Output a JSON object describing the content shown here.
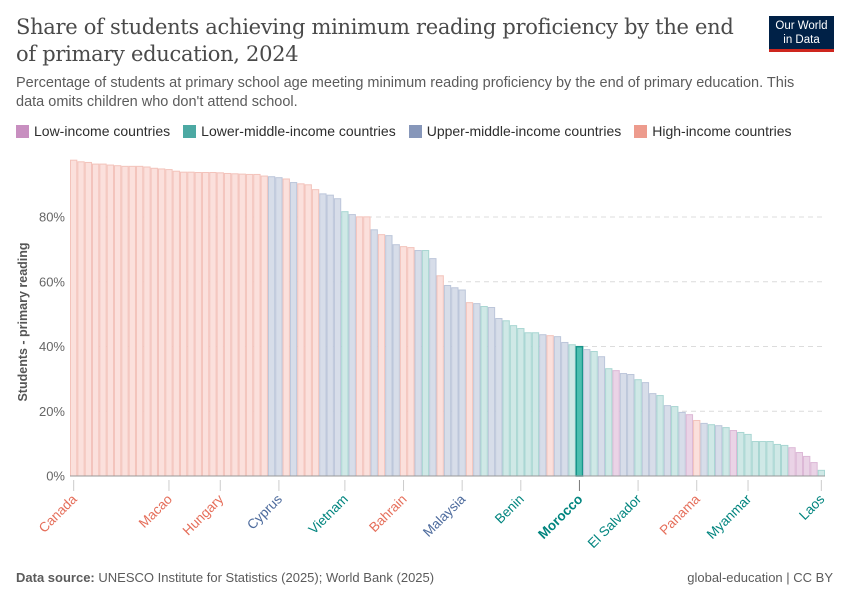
{
  "header": {
    "title": "Share of students achieving minimum reading proficiency by the end of primary education, 2024",
    "subtitle": "Percentage of students at primary school age meeting minimum reading proficiency by the end of primary education. This data omits children who don't attend school.",
    "logo_line1": "Our World",
    "logo_line2": "in Data"
  },
  "legend": [
    {
      "label": "Low-income countries",
      "key": "low",
      "color": "#c88fc0"
    },
    {
      "label": "Lower-middle-income countries",
      "key": "lmid",
      "color": "#4ca9a3"
    },
    {
      "label": "Upper-middle-income countries",
      "key": "umid",
      "color": "#8797ba"
    },
    {
      "label": "High-income countries",
      "key": "high",
      "color": "#ed9b8d"
    }
  ],
  "footer": {
    "source_label": "Data source:",
    "source_text": "UNESCO Institute for Statistics (2025); World Bank (2025)",
    "right_text": "global-education | CC BY"
  },
  "chart_data": {
    "type": "bar",
    "title": "Share of students achieving minimum reading proficiency by the end of primary education, 2024",
    "ylabel": "Students - primary reading",
    "xlabel": "",
    "ylim": [
      0,
      100
    ],
    "yticks": [
      0,
      20,
      40,
      60,
      80
    ],
    "ytick_labels": [
      "0%",
      "20%",
      "40%",
      "60%",
      "80%"
    ],
    "grid": true,
    "highlight": "Morocco",
    "group_colors": {
      "low": {
        "fill": "#ead3e6",
        "stroke": "#dcb8d6"
      },
      "lmid": {
        "fill": "#cfe8e6",
        "stroke": "#a8d6d2"
      },
      "umid": {
        "fill": "#d7dde9",
        "stroke": "#bcc6da"
      },
      "high": {
        "fill": "#fbe0dc",
        "stroke": "#f3c3bb"
      },
      "highlight": {
        "fill": "#4cbfb0",
        "stroke": "#18948a"
      }
    },
    "label_colors": {
      "low": "#a2559c",
      "lmid": "#00847e",
      "umid": "#4c6a9c",
      "high": "#e56e5a"
    },
    "bars": [
      {
        "label": "Canada",
        "group": "high",
        "value": 97.7
      },
      {
        "label": "",
        "group": "high",
        "value": 97.2
      },
      {
        "label": "",
        "group": "high",
        "value": 97.0
      },
      {
        "label": "",
        "group": "high",
        "value": 96.5
      },
      {
        "label": "",
        "group": "high",
        "value": 96.5
      },
      {
        "label": "",
        "group": "high",
        "value": 96.2
      },
      {
        "label": "",
        "group": "high",
        "value": 96.0
      },
      {
        "label": "",
        "group": "high",
        "value": 95.8
      },
      {
        "label": "",
        "group": "high",
        "value": 95.8
      },
      {
        "label": "",
        "group": "high",
        "value": 95.8
      },
      {
        "label": "",
        "group": "high",
        "value": 95.6
      },
      {
        "label": "",
        "group": "high",
        "value": 95.2
      },
      {
        "label": "",
        "group": "high",
        "value": 95.0
      },
      {
        "label": "Macao",
        "group": "high",
        "value": 94.8
      },
      {
        "label": "",
        "group": "high",
        "value": 94.3
      },
      {
        "label": "",
        "group": "high",
        "value": 94.0
      },
      {
        "label": "",
        "group": "high",
        "value": 94.0
      },
      {
        "label": "",
        "group": "high",
        "value": 93.9
      },
      {
        "label": "",
        "group": "high",
        "value": 93.9
      },
      {
        "label": "",
        "group": "high",
        "value": 93.9
      },
      {
        "label": "Hungary",
        "group": "high",
        "value": 93.8
      },
      {
        "label": "",
        "group": "high",
        "value": 93.6
      },
      {
        "label": "",
        "group": "high",
        "value": 93.5
      },
      {
        "label": "",
        "group": "high",
        "value": 93.4
      },
      {
        "label": "",
        "group": "high",
        "value": 93.3
      },
      {
        "label": "",
        "group": "high",
        "value": 93.3
      },
      {
        "label": "",
        "group": "high",
        "value": 92.8
      },
      {
        "label": "",
        "group": "umid",
        "value": 92.6
      },
      {
        "label": "Cyprus",
        "group": "umid",
        "value": 92.3
      },
      {
        "label": "",
        "group": "high",
        "value": 91.9
      },
      {
        "label": "",
        "group": "umid",
        "value": 90.8
      },
      {
        "label": "",
        "group": "high",
        "value": 90.4
      },
      {
        "label": "",
        "group": "high",
        "value": 90.1
      },
      {
        "label": "",
        "group": "high",
        "value": 88.6
      },
      {
        "label": "",
        "group": "umid",
        "value": 87.3
      },
      {
        "label": "",
        "group": "umid",
        "value": 86.9
      },
      {
        "label": "",
        "group": "umid",
        "value": 85.8
      },
      {
        "label": "Vietnam",
        "group": "lmid",
        "value": 81.8
      },
      {
        "label": "",
        "group": "umid",
        "value": 80.9
      },
      {
        "label": "",
        "group": "high",
        "value": 80.2
      },
      {
        "label": "",
        "group": "high",
        "value": 80.2
      },
      {
        "label": "",
        "group": "umid",
        "value": 76.2
      },
      {
        "label": "",
        "group": "high",
        "value": 74.7
      },
      {
        "label": "",
        "group": "umid",
        "value": 74.4
      },
      {
        "label": "",
        "group": "umid",
        "value": 71.6
      },
      {
        "label": "Bahrain",
        "group": "high",
        "value": 71.0
      },
      {
        "label": "",
        "group": "high",
        "value": 70.7
      },
      {
        "label": "",
        "group": "umid",
        "value": 69.8
      },
      {
        "label": "",
        "group": "lmid",
        "value": 69.8
      },
      {
        "label": "",
        "group": "umid",
        "value": 67.3
      },
      {
        "label": "",
        "group": "high",
        "value": 62.0
      },
      {
        "label": "",
        "group": "umid",
        "value": 59.0
      },
      {
        "label": "",
        "group": "umid",
        "value": 58.3
      },
      {
        "label": "Malaysia",
        "group": "umid",
        "value": 57.6
      },
      {
        "label": "",
        "group": "high",
        "value": 53.7
      },
      {
        "label": "",
        "group": "umid",
        "value": 53.4
      },
      {
        "label": "",
        "group": "lmid",
        "value": 52.5
      },
      {
        "label": "",
        "group": "umid",
        "value": 52.2
      },
      {
        "label": "",
        "group": "umid",
        "value": 48.8
      },
      {
        "label": "",
        "group": "lmid",
        "value": 48.1
      },
      {
        "label": "",
        "group": "lmid",
        "value": 46.6
      },
      {
        "label": "Benin",
        "group": "lmid",
        "value": 45.7
      },
      {
        "label": "",
        "group": "lmid",
        "value": 44.4
      },
      {
        "label": "",
        "group": "lmid",
        "value": 44.4
      },
      {
        "label": "",
        "group": "umid",
        "value": 43.8
      },
      {
        "label": "",
        "group": "high",
        "value": 43.5
      },
      {
        "label": "",
        "group": "umid",
        "value": 43.2
      },
      {
        "label": "",
        "group": "umid",
        "value": 41.4
      },
      {
        "label": "",
        "group": "lmid",
        "value": 40.7
      },
      {
        "label": "Morocco",
        "group": "lmid",
        "value": 40.1,
        "highlight": true
      },
      {
        "label": "",
        "group": "umid",
        "value": 39.2
      },
      {
        "label": "",
        "group": "lmid",
        "value": 38.6
      },
      {
        "label": "",
        "group": "umid",
        "value": 37.0
      },
      {
        "label": "",
        "group": "lmid",
        "value": 33.3
      },
      {
        "label": "",
        "group": "low",
        "value": 32.7
      },
      {
        "label": "",
        "group": "umid",
        "value": 31.8
      },
      {
        "label": "",
        "group": "umid",
        "value": 31.5
      },
      {
        "label": "El Salvador",
        "group": "lmid",
        "value": 29.9
      },
      {
        "label": "",
        "group": "umid",
        "value": 29.0
      },
      {
        "label": "",
        "group": "umid",
        "value": 25.6
      },
      {
        "label": "",
        "group": "lmid",
        "value": 25.0
      },
      {
        "label": "",
        "group": "umid",
        "value": 21.9
      },
      {
        "label": "",
        "group": "lmid",
        "value": 21.6
      },
      {
        "label": "",
        "group": "umid",
        "value": 19.8
      },
      {
        "label": "",
        "group": "low",
        "value": 19.1
      },
      {
        "label": "Panama",
        "group": "high",
        "value": 17.3
      },
      {
        "label": "",
        "group": "umid",
        "value": 16.4
      },
      {
        "label": "",
        "group": "lmid",
        "value": 16.0
      },
      {
        "label": "",
        "group": "umid",
        "value": 15.7
      },
      {
        "label": "",
        "group": "lmid",
        "value": 15.1
      },
      {
        "label": "",
        "group": "low",
        "value": 14.2
      },
      {
        "label": "",
        "group": "lmid",
        "value": 13.6
      },
      {
        "label": "Myanmar",
        "group": "lmid",
        "value": 13.0
      },
      {
        "label": "",
        "group": "lmid",
        "value": 10.8
      },
      {
        "label": "",
        "group": "lmid",
        "value": 10.8
      },
      {
        "label": "",
        "group": "lmid",
        "value": 10.8
      },
      {
        "label": "",
        "group": "lmid",
        "value": 9.9
      },
      {
        "label": "",
        "group": "lmid",
        "value": 9.6
      },
      {
        "label": "",
        "group": "low",
        "value": 8.9
      },
      {
        "label": "",
        "group": "low",
        "value": 7.4
      },
      {
        "label": "",
        "group": "low",
        "value": 6.2
      },
      {
        "label": "",
        "group": "low",
        "value": 4.3
      },
      {
        "label": "Laos",
        "group": "lmid",
        "value": 1.9
      }
    ]
  }
}
